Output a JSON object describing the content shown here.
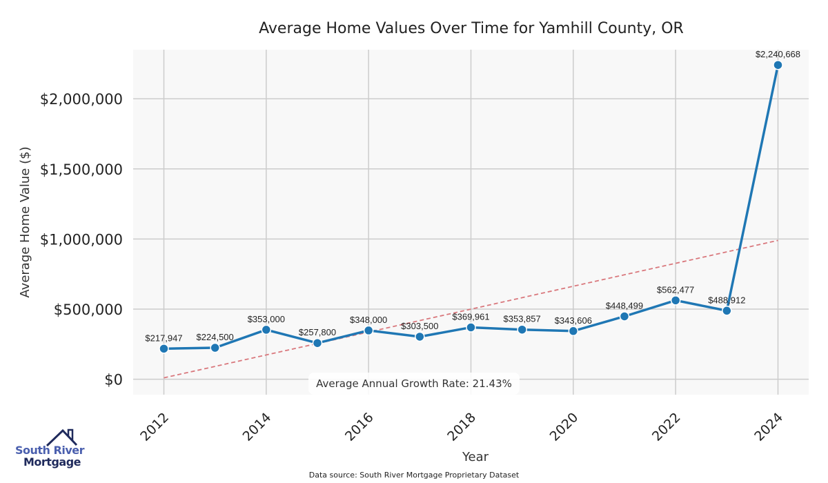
{
  "chart_data": {
    "type": "line",
    "title": "Average Home Values Over Time for Yamhill County, OR",
    "xlabel": "Year",
    "ylabel": "Average Home Value ($)",
    "x": [
      2012,
      2013,
      2014,
      2015,
      2016,
      2017,
      2018,
      2019,
      2020,
      2021,
      2022,
      2023,
      2024
    ],
    "values": [
      217947,
      224500,
      353000,
      257800,
      348000,
      303500,
      369961,
      353857,
      343606,
      448499,
      562477,
      488912,
      2240668
    ],
    "data_labels": [
      "$217,947",
      "$224,500",
      "$353,000",
      "$257,800",
      "$348,000",
      "$303,500",
      "$369,961",
      "$353,857",
      "$343,606",
      "$448,499",
      "$562,477",
      "$488,912",
      "$2,240,668"
    ],
    "x_ticks": [
      "2012",
      "2014",
      "2016",
      "2018",
      "2020",
      "2022",
      "2024"
    ],
    "y_ticks": [
      {
        "value": 0,
        "label": "$0"
      },
      {
        "value": 500000,
        "label": "$500,000"
      },
      {
        "value": 1000000,
        "label": "$1,000,000"
      },
      {
        "value": 1500000,
        "label": "$1,500,000"
      },
      {
        "value": 2000000,
        "label": "$2,000,000"
      }
    ],
    "xlim": [
      2011.4,
      2024.6
    ],
    "ylim": [
      -110000,
      2350000
    ],
    "trend_line": {
      "start": [
        2012,
        10000
      ],
      "end": [
        2024,
        990000
      ],
      "color": "#d9777c"
    },
    "annotation": "Average Annual Growth Rate: 21.43%",
    "grid": true,
    "line_color": "#1f77b4"
  },
  "logo": {
    "line1": "South River",
    "line2": "Mortgage"
  },
  "source": "Data source: South River Mortgage Proprietary Dataset"
}
